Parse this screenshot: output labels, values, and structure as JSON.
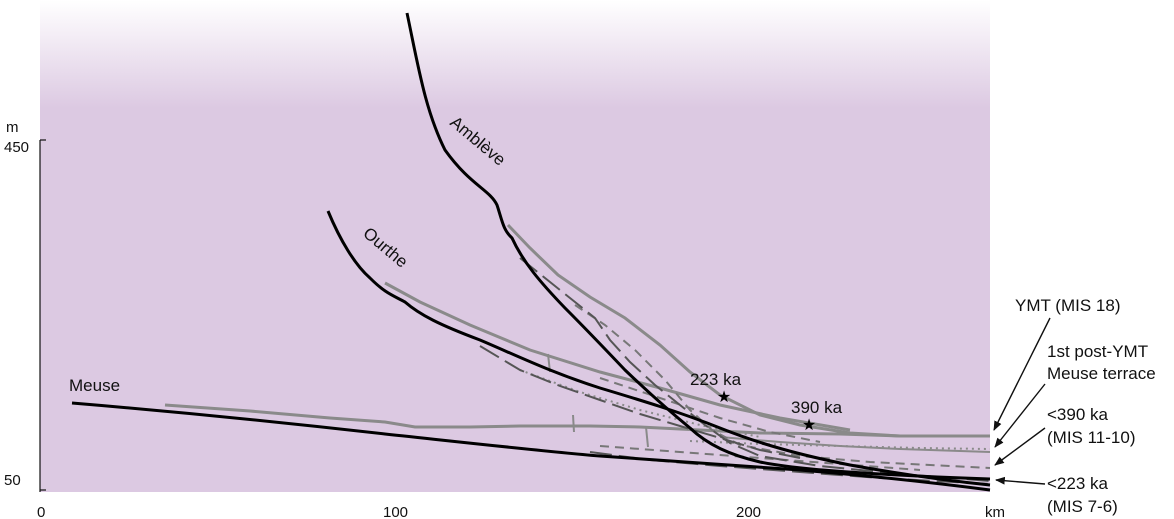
{
  "axis": {
    "y_unit": "m",
    "y_top_label": "450",
    "y_bottom_label": "50",
    "x_ticks": [
      "0",
      "100",
      "200"
    ],
    "x_unit": "km"
  },
  "rivers": {
    "ambleve": "Amblève",
    "ourthe": "Ourthe",
    "meuse": "Meuse"
  },
  "sites": {
    "a": "223 ka",
    "b": "390 ka"
  },
  "legend": {
    "ymt": "YMT (MIS 18)",
    "post_line1": "1st post-YMT",
    "post_line2": "Meuse terrace",
    "k390_line1": "<390 ka",
    "k390_line2": "(MIS 11-10)",
    "k223_line1": "<223 ka",
    "k223_line2": "(MIS 7-6)"
  },
  "colors": {
    "background": "#dcc9e2",
    "riverbed": "#000000",
    "terrace": "#8a8a8a",
    "terrace_dark": "#555555"
  }
}
